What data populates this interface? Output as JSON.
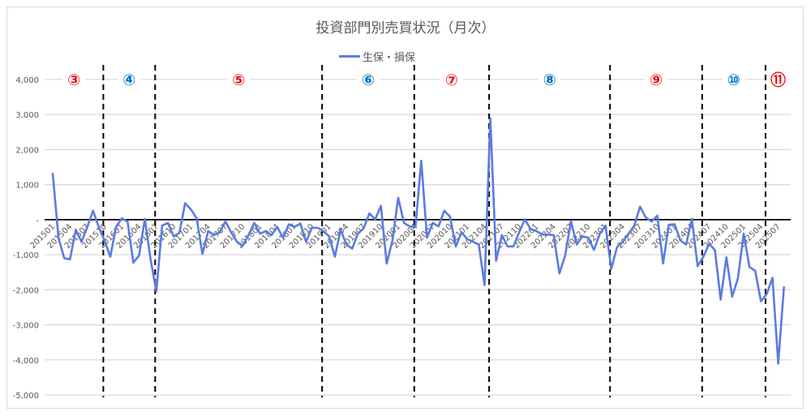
{
  "chart_data": {
    "type": "line",
    "title": "投資部門別売買状況（月次）",
    "xlabel": "",
    "ylabel": "",
    "ylim": [
      -5000,
      4000
    ],
    "y_ticks": [
      "4,000",
      "3,000",
      "2,000",
      "1,000",
      "-",
      "-1,000",
      "-2,000",
      "-3,000",
      "-4,000",
      "-5,000"
    ],
    "y_tick_values": [
      4000,
      3000,
      2000,
      1000,
      0,
      -1000,
      -2000,
      -3000,
      -4000,
      -5000
    ],
    "grid": true,
    "legend": "top",
    "x_start": "201501",
    "x_tick_every_months": 3,
    "series": [
      {
        "name": "生保・損保",
        "color": "#5b7be0",
        "values": [
          1335,
          -520,
          -1096,
          -1134,
          -285,
          -633,
          -208,
          255,
          -208,
          -594,
          -1057,
          -208,
          39,
          -54,
          -1227,
          -1018,
          23,
          -1134,
          -2050,
          -170,
          -93,
          -478,
          -378,
          470,
          293,
          39,
          -980,
          -324,
          -440,
          -363,
          -54,
          -363,
          -633,
          -748,
          -440,
          -93,
          -401,
          -324,
          -440,
          -208,
          -517,
          -131,
          -208,
          -108,
          -633,
          -231,
          -231,
          -324,
          -478,
          -1057,
          -285,
          -710,
          -826,
          -401,
          -247,
          177,
          8,
          393,
          -1250,
          -594,
          625,
          -93,
          -193,
          -208,
          1682,
          -517,
          -93,
          -193,
          255,
          85,
          -764,
          -363,
          -556,
          -633,
          -710,
          -1867,
          2900,
          -1173,
          -440,
          -764,
          -764,
          -363,
          8,
          -270,
          -324,
          -424,
          -424,
          -440,
          -1535,
          -1018,
          -39,
          -710,
          -478,
          -517,
          -864,
          -404,
          -170,
          -1404,
          -787,
          -633,
          -401,
          -170,
          370,
          62,
          -54,
          116,
          -1250,
          -147,
          -131,
          -594,
          -710,
          23,
          -1327,
          -1057,
          -687,
          -864,
          -2276,
          -1073,
          -2199,
          -1674,
          -401,
          -1350,
          -1458,
          -2330,
          -2122,
          -1659,
          -4105,
          -1906
        ]
      }
    ],
    "annotations": [
      {
        "label": "③",
        "color": "#e8101a"
      },
      {
        "label": "④",
        "color": "#0070c0"
      },
      {
        "label": "⑤",
        "color": "#e8101a"
      },
      {
        "label": "⑥",
        "color": "#0070c0"
      },
      {
        "label": "⑦",
        "color": "#e8101a"
      },
      {
        "label": "⑧",
        "color": "#0070c0"
      },
      {
        "label": "⑨",
        "color": "#e8101a"
      },
      {
        "label": "⑩",
        "color": "#0070c0"
      },
      {
        "label": "⑪",
        "color": "#e8101a"
      }
    ],
    "period_dividers": [
      "201510",
      "201607",
      "201812",
      "202004",
      "202105",
      "202302",
      "202406",
      "202505"
    ]
  }
}
